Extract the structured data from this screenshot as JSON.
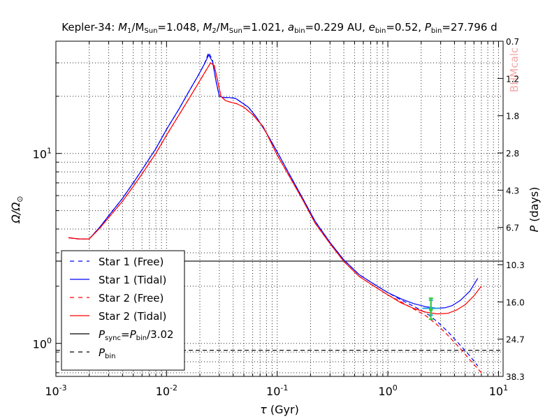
{
  "chart_data": {
    "type": "line",
    "title": "Kepler-34: M₁/M_Sun=1.048, M₂/M_Sun=1.021, a_bin=0.229 AU, e_bin=0.52, P_bin=27.796 d",
    "title_parts": {
      "prefix": "Kepler-34: ",
      "m1": "M",
      "m1_sub": "1",
      "m1_mid": "/M",
      "sun1": "Sun",
      "m1_val": "=1.048, ",
      "m2": "M",
      "m2_sub": "2",
      "m2_mid": "/M",
      "sun2": "Sun",
      "m2_val": "=1.021, ",
      "a": "a",
      "a_sub": "bin",
      "a_val": "=0.229 AU, ",
      "e": "e",
      "e_sub": "bin",
      "e_val": "=0.52, ",
      "p": "P",
      "p_sub": "bin",
      "p_val": "=27.796 d"
    },
    "xlabel": {
      "sym": "τ",
      "unit": " (Gyr)"
    },
    "ylabel": {
      "text": "Ω/Ω",
      "sub": "⊙"
    },
    "y2label": {
      "sym": "P",
      "unit": " (days)"
    },
    "watermark": "BHMcalc",
    "xscale": "log",
    "yscale": "log",
    "xlim": [
      0.001,
      11.0
    ],
    "ylim": [
      0.67,
      39.0
    ],
    "grid": true,
    "legend_position": "lower-left",
    "x_ticks": [
      {
        "value": 0.001,
        "base": "10",
        "exp": "-3"
      },
      {
        "value": 0.01,
        "base": "10",
        "exp": "-2"
      },
      {
        "value": 0.1,
        "base": "10",
        "exp": "-1"
      },
      {
        "value": 1,
        "base": "10",
        "exp": "0"
      },
      {
        "value": 10,
        "base": "10",
        "exp": "1"
      }
    ],
    "y_ticks": [
      {
        "value": 1,
        "base": "10",
        "exp": "0"
      },
      {
        "value": 10,
        "base": "10",
        "exp": "1"
      }
    ],
    "y2_ticks": [
      "0.7",
      "1.2",
      "1.8",
      "2.8",
      "4.3",
      "6.7",
      "10.3",
      "16.0",
      "24.7",
      "38.3"
    ],
    "series": [
      {
        "name": "Star 1 (Free)",
        "color": "#0000ff",
        "dash": "dashed",
        "x": [
          0.0013,
          0.0016,
          0.002,
          0.0025,
          0.003,
          0.004,
          0.005,
          0.006,
          0.008,
          0.01,
          0.013,
          0.016,
          0.019,
          0.022,
          0.024,
          0.026,
          0.028,
          0.03,
          0.033,
          0.037,
          0.042,
          0.048,
          0.055,
          0.065,
          0.08,
          0.1,
          0.13,
          0.17,
          0.22,
          0.3,
          0.4,
          0.55,
          0.75,
          1.0,
          1.3,
          1.7,
          2.2,
          2.8,
          3.5,
          4.5,
          5.5,
          6.5
        ],
        "y": [
          3.6,
          3.55,
          3.55,
          4.1,
          4.7,
          5.8,
          7.0,
          8.2,
          10.6,
          13.4,
          17.2,
          21.3,
          25.3,
          29.6,
          34.0,
          31.0,
          24.0,
          20.0,
          19.7,
          19.7,
          19.5,
          18.5,
          17.5,
          15.5,
          12.8,
          10.2,
          7.7,
          5.8,
          4.4,
          3.4,
          2.75,
          2.3,
          2.05,
          1.85,
          1.7,
          1.57,
          1.45,
          1.3,
          1.15,
          0.98,
          0.86,
          0.76
        ]
      },
      {
        "name": "Star 1 (Tidal)",
        "color": "#0000ff",
        "dash": "solid",
        "x": [
          0.0013,
          0.0016,
          0.002,
          0.0025,
          0.003,
          0.004,
          0.005,
          0.006,
          0.008,
          0.01,
          0.013,
          0.016,
          0.019,
          0.022,
          0.024,
          0.026,
          0.028,
          0.03,
          0.033,
          0.037,
          0.042,
          0.048,
          0.055,
          0.065,
          0.08,
          0.1,
          0.13,
          0.17,
          0.22,
          0.3,
          0.4,
          0.55,
          0.75,
          1.0,
          1.3,
          1.7,
          2.2,
          2.8,
          3.3,
          3.8,
          4.5,
          5.5,
          6.5
        ],
        "y": [
          3.6,
          3.55,
          3.55,
          4.1,
          4.7,
          5.8,
          7.0,
          8.2,
          10.6,
          13.4,
          17.2,
          21.3,
          25.3,
          29.6,
          33.0,
          30.5,
          24.0,
          20.0,
          19.7,
          19.7,
          19.5,
          18.5,
          17.5,
          15.5,
          12.8,
          10.2,
          7.7,
          5.8,
          4.4,
          3.4,
          2.75,
          2.3,
          2.05,
          1.85,
          1.72,
          1.62,
          1.56,
          1.53,
          1.54,
          1.58,
          1.68,
          1.88,
          2.2
        ]
      },
      {
        "name": "Star 2 (Free)",
        "color": "#ff0000",
        "dash": "dashed",
        "x": [
          0.0013,
          0.0016,
          0.002,
          0.0025,
          0.003,
          0.004,
          0.005,
          0.006,
          0.008,
          0.01,
          0.013,
          0.016,
          0.019,
          0.022,
          0.025,
          0.027,
          0.029,
          0.031,
          0.034,
          0.038,
          0.043,
          0.05,
          0.06,
          0.075,
          0.1,
          0.13,
          0.17,
          0.22,
          0.3,
          0.4,
          0.55,
          0.75,
          1.0,
          1.3,
          1.7,
          2.2,
          2.8,
          3.5,
          4.5,
          5.5,
          7.0
        ],
        "y": [
          3.6,
          3.55,
          3.55,
          4.05,
          4.6,
          5.6,
          6.7,
          7.8,
          10.0,
          12.5,
          16.0,
          19.5,
          23.0,
          26.5,
          30.0,
          29.0,
          24.0,
          20.0,
          19.0,
          18.6,
          18.3,
          17.5,
          16.0,
          13.8,
          9.8,
          7.5,
          5.7,
          4.3,
          3.35,
          2.7,
          2.25,
          2.0,
          1.8,
          1.66,
          1.52,
          1.4,
          1.25,
          1.1,
          0.94,
          0.82,
          0.7
        ]
      },
      {
        "name": "Star 2 (Tidal)",
        "color": "#ff0000",
        "dash": "solid",
        "x": [
          0.0013,
          0.0016,
          0.002,
          0.0025,
          0.003,
          0.004,
          0.005,
          0.006,
          0.008,
          0.01,
          0.013,
          0.016,
          0.019,
          0.022,
          0.025,
          0.027,
          0.029,
          0.031,
          0.034,
          0.038,
          0.043,
          0.05,
          0.06,
          0.075,
          0.1,
          0.13,
          0.17,
          0.22,
          0.3,
          0.4,
          0.55,
          0.75,
          1.0,
          1.3,
          1.7,
          2.2,
          2.8,
          3.5,
          4.2,
          5.0,
          6.0,
          7.0
        ],
        "y": [
          3.6,
          3.55,
          3.55,
          4.05,
          4.6,
          5.6,
          6.7,
          7.8,
          10.0,
          12.5,
          16.0,
          19.5,
          23.0,
          26.5,
          30.0,
          29.0,
          24.0,
          20.0,
          19.0,
          18.6,
          18.3,
          17.5,
          16.0,
          13.8,
          9.8,
          7.5,
          5.7,
          4.3,
          3.35,
          2.7,
          2.25,
          2.0,
          1.8,
          1.64,
          1.53,
          1.46,
          1.43,
          1.44,
          1.5,
          1.6,
          1.78,
          2.0
        ]
      }
    ],
    "reference_lines": [
      {
        "name": "P_sync=P_bin/3.02",
        "y": 2.71,
        "color": "#000000",
        "dash": "solid"
      },
      {
        "name": "P_bin",
        "y": 0.92,
        "color": "#000000",
        "dash": "dashed"
      }
    ],
    "markers": [
      {
        "label": "",
        "x": 2.45,
        "y": 1.53,
        "xerr": [
          2.05,
          2.95
        ],
        "yerr": [
          1.41,
          1.69
        ],
        "color": "#1ea0e6"
      },
      {
        "label": "",
        "x": 2.45,
        "y": 1.5,
        "xerr": [
          2.35,
          2.55
        ],
        "yerr": [
          1.34,
          1.73
        ],
        "color": "#33cc33"
      }
    ],
    "legend_entries": [
      {
        "label": "Star 1 (Free)",
        "color": "#0000ff",
        "dash": "dashed"
      },
      {
        "label": "Star 1 (Tidal)",
        "color": "#0000ff",
        "dash": "solid"
      },
      {
        "label": "Star 2 (Free)",
        "color": "#ff0000",
        "dash": "dashed"
      },
      {
        "label": "Star 2 (Tidal)",
        "color": "#ff0000",
        "dash": "solid"
      },
      {
        "label": "",
        "math": {
          "a": "P",
          "a_sub": "sync",
          "b": "=P",
          "b_sub": "bin",
          "c": "/3.02"
        },
        "color": "#000000",
        "dash": "solid"
      },
      {
        "label": "",
        "math": {
          "a": "P",
          "a_sub": "bin"
        },
        "color": "#000000",
        "dash": "dashed"
      }
    ]
  }
}
